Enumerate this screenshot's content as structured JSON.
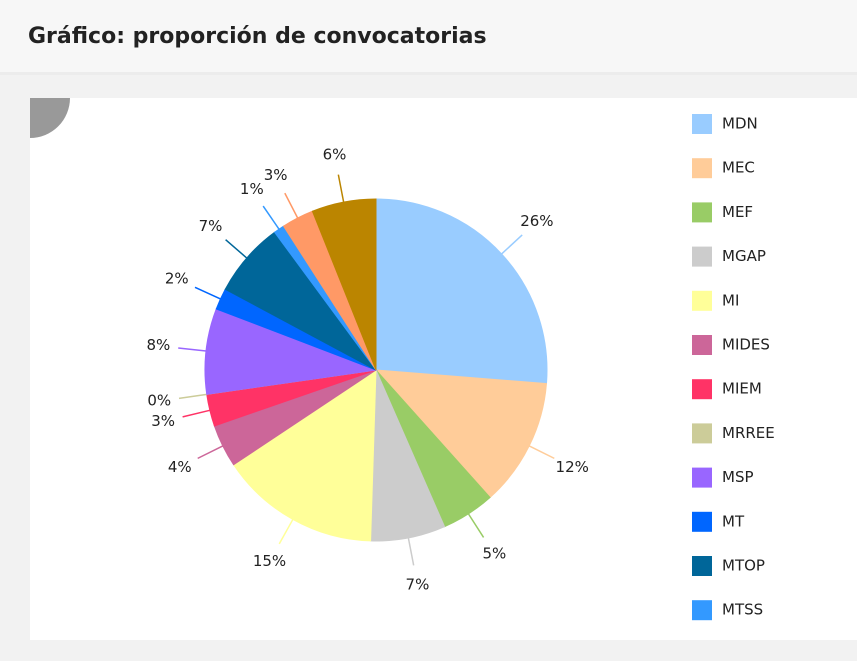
{
  "chart_data": {
    "type": "pie",
    "title": "Gráfico: proporción de convocatorias",
    "categories": [
      "MDN",
      "MEC",
      "MEF",
      "MGAP",
      "MI",
      "MIDES",
      "MIEM",
      "MRREE",
      "MSP",
      "MT",
      "MTOP",
      "MTSS",
      null,
      null
    ],
    "values": [
      26,
      12,
      5,
      7,
      15,
      4,
      3,
      0,
      8,
      2,
      7,
      1,
      3,
      6
    ],
    "value_labels": [
      "26%",
      "12%",
      "5%",
      "7%",
      "15%",
      "4%",
      "3%",
      "0%",
      "8%",
      "2%",
      "7%",
      "1%",
      "3%",
      "6%"
    ],
    "colors": [
      "#99ccff",
      "#ffcc99",
      "#99cc66",
      "#cccccc",
      "#ffff99",
      "#cc6699",
      "#ff3366",
      "#cccc99",
      "#9966ff",
      "#0066ff",
      "#006699",
      "#3399ff",
      "#ff9966",
      "#bb8500"
    ]
  }
}
